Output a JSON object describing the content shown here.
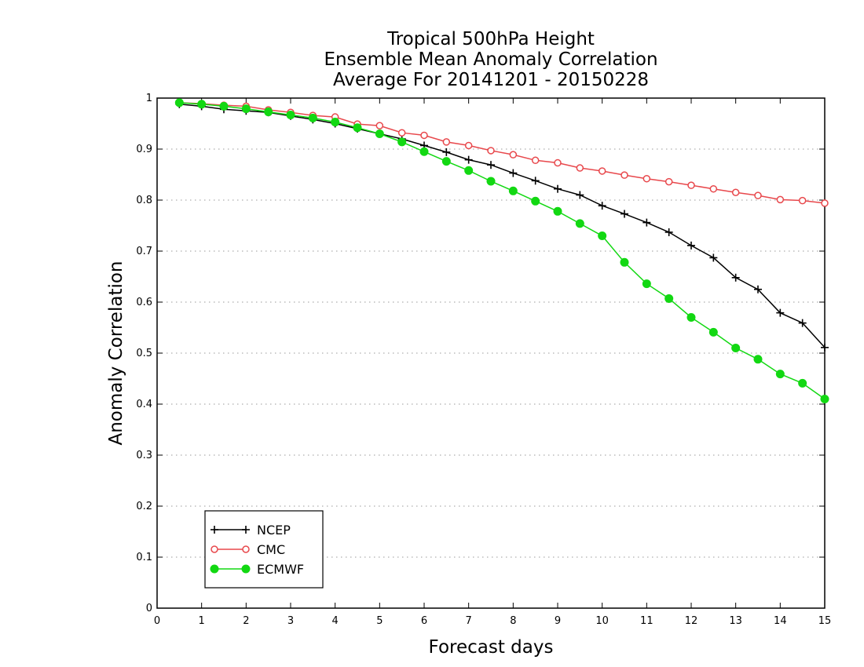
{
  "chart_data": {
    "type": "line",
    "title": "Tropical 500hPa Height",
    "subtitle_1": "Ensemble Mean Anomaly Correlation",
    "subtitle_2": "Average For 20141201 - 20150228",
    "xlabel": "Forecast days",
    "ylabel": "Anomaly Correlation",
    "xlim": [
      0,
      15
    ],
    "ylim": [
      0,
      1
    ],
    "xticks": [
      0,
      1,
      2,
      3,
      4,
      5,
      6,
      7,
      8,
      9,
      10,
      11,
      12,
      13,
      14,
      15
    ],
    "yticks": [
      0,
      0.1,
      0.2,
      0.3,
      0.4,
      0.5,
      0.6,
      0.7,
      0.8,
      0.9,
      1
    ],
    "ytick_labels": [
      "0",
      "0.1",
      "0.2",
      "0.3",
      "0.4",
      "0.5",
      "0.6",
      "0.7",
      "0.8",
      "0.9",
      "1"
    ],
    "grid": "horizontal dotted",
    "legend_position": "bottom-left",
    "x": [
      0.5,
      1,
      1.5,
      2,
      2.5,
      3,
      3.5,
      4,
      4.5,
      5,
      5.5,
      6,
      6.5,
      7,
      7.5,
      8,
      8.5,
      9,
      9.5,
      10,
      10.5,
      11,
      11.5,
      12,
      12.5,
      13,
      13.5,
      14,
      14.5,
      15
    ],
    "series": [
      {
        "name": "NCEP",
        "color": "#000000",
        "marker": "plus",
        "values": [
          0.988,
          0.984,
          0.978,
          0.975,
          0.972,
          0.965,
          0.958,
          0.95,
          0.94,
          0.93,
          0.92,
          0.907,
          0.894,
          0.879,
          0.869,
          0.853,
          0.838,
          0.822,
          0.81,
          0.789,
          0.773,
          0.756,
          0.737,
          0.711,
          0.687,
          0.648,
          0.625,
          0.579,
          0.559,
          0.511
        ]
      },
      {
        "name": "CMC",
        "color": "#e8484c",
        "marker": "open-circle",
        "values": [
          0.991,
          0.989,
          0.986,
          0.984,
          0.977,
          0.972,
          0.966,
          0.963,
          0.949,
          0.946,
          0.932,
          0.927,
          0.914,
          0.907,
          0.897,
          0.889,
          0.878,
          0.873,
          0.863,
          0.857,
          0.849,
          0.842,
          0.836,
          0.829,
          0.822,
          0.815,
          0.809,
          0.801,
          0.799,
          0.794
        ]
      },
      {
        "name": "ECMWF",
        "color": "#12d812",
        "marker": "filled-circle",
        "values": [
          0.991,
          0.988,
          0.984,
          0.979,
          0.973,
          0.967,
          0.961,
          0.953,
          0.942,
          0.93,
          0.914,
          0.895,
          0.876,
          0.858,
          0.837,
          0.818,
          0.798,
          0.778,
          0.754,
          0.73,
          0.678,
          0.636,
          0.607,
          0.57,
          0.541,
          0.51,
          0.488,
          0.459,
          0.441,
          0.41
        ]
      }
    ]
  }
}
